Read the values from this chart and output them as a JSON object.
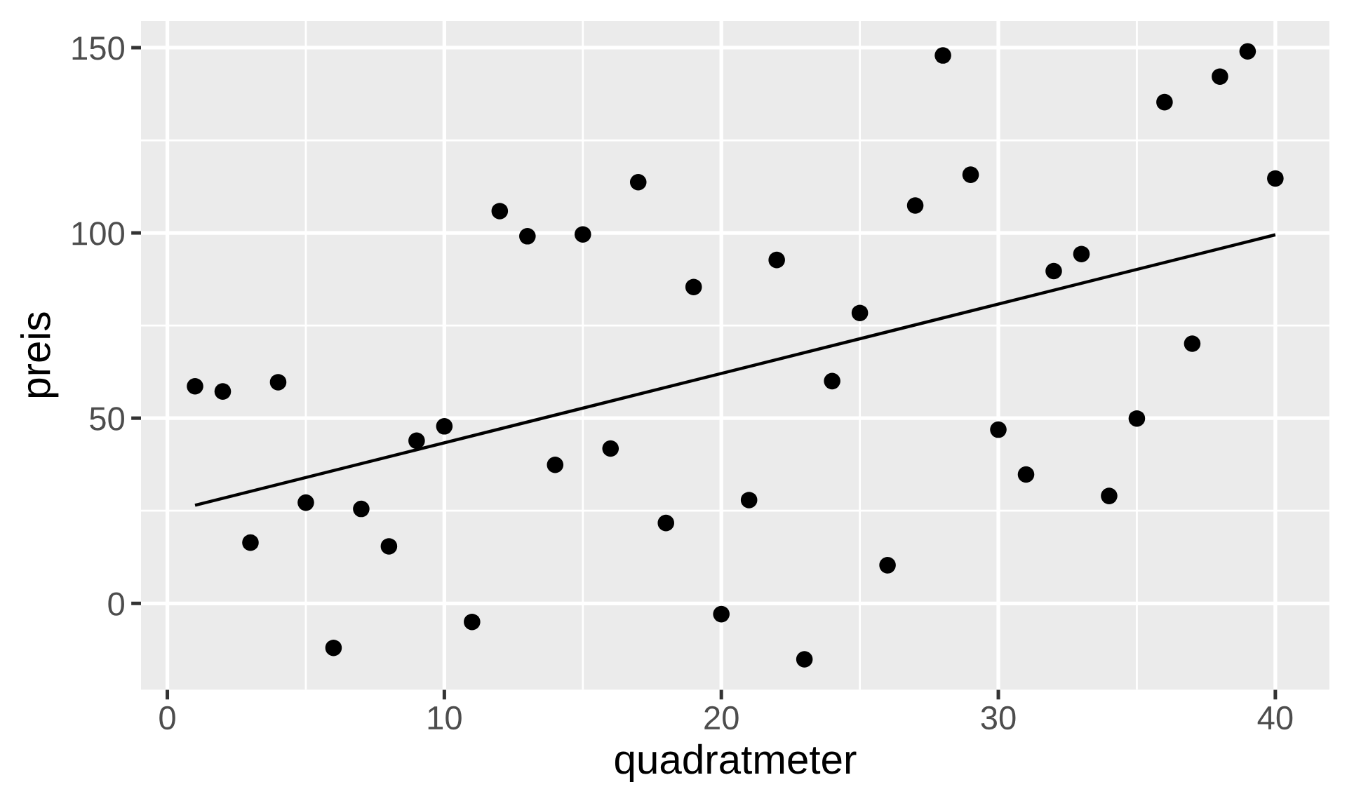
{
  "chart_data": {
    "type": "scatter",
    "xlabel": "quadratmeter",
    "ylabel": "preis",
    "x": [
      1,
      2,
      3,
      4,
      5,
      6,
      7,
      8,
      9,
      10,
      11,
      12,
      13,
      14,
      15,
      16,
      17,
      18,
      19,
      20,
      21,
      22,
      23,
      24,
      25,
      26,
      27,
      28,
      29,
      30,
      31,
      32,
      33,
      34,
      35,
      36,
      37,
      38,
      39,
      40
    ],
    "series": [
      {
        "color": "#000000",
        "marker": "circle",
        "values": [
          58.6,
          57.2,
          16.4,
          59.7,
          27.2,
          -12.0,
          25.5,
          15.4,
          43.9,
          47.8,
          -5.0,
          105.9,
          99.1,
          37.4,
          99.6,
          41.8,
          113.7,
          21.7,
          85.4,
          -2.9,
          27.9,
          92.7,
          -15.1,
          60.0,
          78.4,
          10.3,
          107.4,
          147.9,
          115.7,
          46.9,
          34.8,
          89.7,
          94.3,
          29.0,
          49.9,
          135.3,
          70.1,
          142.2,
          149.0,
          114.7
        ]
      },
      {
        "type": "line",
        "color": "#000000",
        "line_style": "solid",
        "x": [
          1,
          40
        ],
        "values": [
          26.5,
          99.5
        ]
      }
    ],
    "xlim": [
      -0.95,
      41.95
    ],
    "ylim": [
      -23.3,
      157.2
    ],
    "xticks": [
      0,
      10,
      20,
      30,
      40
    ],
    "yticks": [
      0,
      50,
      100,
      150
    ],
    "grid": true
  }
}
